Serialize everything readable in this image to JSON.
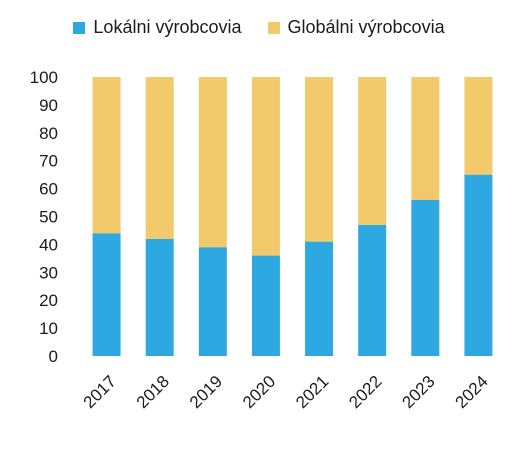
{
  "chart_data": {
    "type": "bar",
    "stacked": true,
    "categories": [
      "2017",
      "2018",
      "2019",
      "2020",
      "2021",
      "2022",
      "2023",
      "2024"
    ],
    "series": [
      {
        "name": "Lokálni výrobcovia",
        "color": "#2EA8E0",
        "values": [
          44,
          42,
          39,
          36,
          41,
          47,
          56,
          65
        ]
      },
      {
        "name": "Globálni výrobcovia",
        "color": "#F2C96B",
        "values": [
          56,
          58,
          61,
          64,
          59,
          53,
          44,
          35
        ]
      }
    ],
    "ylim": [
      0,
      100
    ],
    "yticks": [
      "0",
      "10",
      "20",
      "30",
      "40",
      "50",
      "60",
      "70",
      "80",
      "90",
      "100"
    ],
    "grid": false,
    "legend_position": "top-center",
    "xlabel": "",
    "ylabel": ""
  }
}
